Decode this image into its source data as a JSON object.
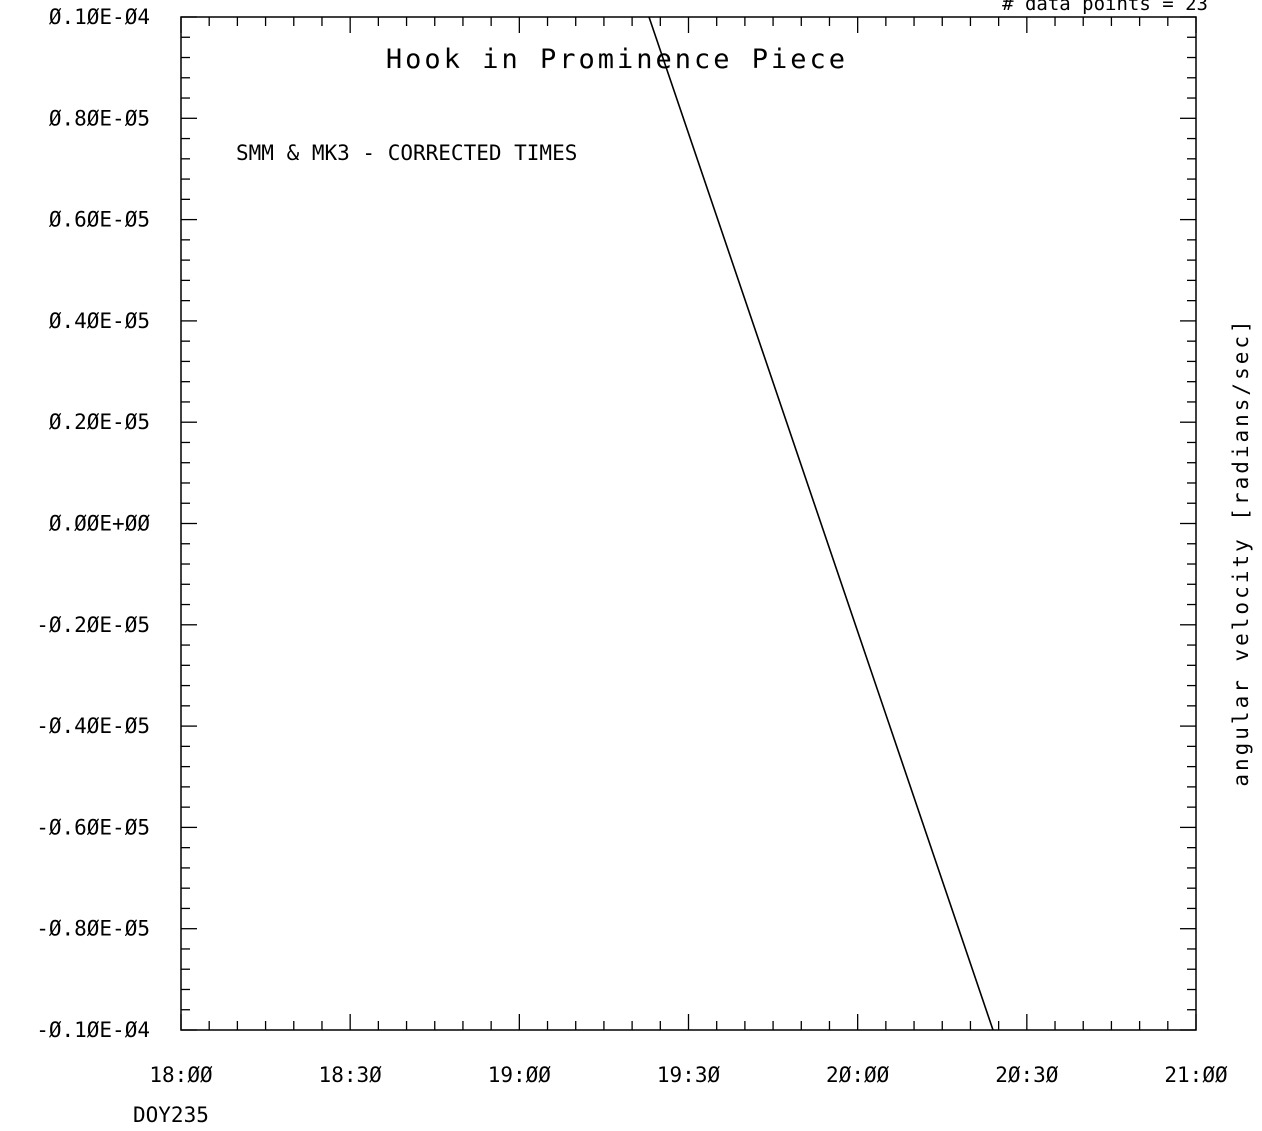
{
  "chart_data": {
    "type": "line",
    "title": "Hook in Prominence Piece",
    "annotation": "SMM & MK3 - CORRECTED TIMES",
    "top_right_note": "# data points =   23",
    "xlabel": "",
    "x_caption": "DOY235",
    "ylabel": "angular velocity [radians/sec]",
    "x_unit": "time",
    "xlim": [
      "18:00",
      "21:00"
    ],
    "ylim": [
      -1e-05,
      1e-05
    ],
    "x_tick_labels": [
      "18:00",
      "18:30",
      "19:00",
      "19:30",
      "20:00",
      "20:30",
      "21:00"
    ],
    "y_tick_labels": [
      "0.10E-04",
      "0.80E-05",
      "0.60E-05",
      "0.40E-05",
      "0.20E-05",
      "0.00E+00",
      "-0.20E-05",
      "-0.40E-05",
      "-0.60E-05",
      "-0.80E-05",
      "-0.10E-04"
    ],
    "grid": false,
    "legend": "none",
    "series": [
      {
        "x": [
          "19:23",
          "20:24"
        ],
        "y": [
          1e-05,
          -1e-05
        ]
      }
    ],
    "line_color": "#000000"
  }
}
